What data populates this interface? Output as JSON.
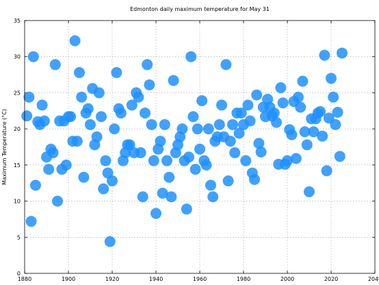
{
  "chart_data": {
    "type": "scatter",
    "title": "Edmonton daily maximum temperature for May 31",
    "xlabel": "",
    "ylabel": "Maximum Temperature (°C)",
    "xlim": [
      1880,
      2040
    ],
    "ylim": [
      0,
      35
    ],
    "xticks": [
      1880,
      1900,
      1920,
      1940,
      1960,
      1980,
      2000,
      2020,
      2040
    ],
    "yticks": [
      0,
      5,
      10,
      15,
      20,
      25,
      30,
      35
    ],
    "grid": true,
    "color": "#1e90ff",
    "points": [
      [
        1881,
        21.8
      ],
      [
        1882,
        24.4
      ],
      [
        1883,
        7.2
      ],
      [
        1884,
        30.0
      ],
      [
        1885,
        12.2
      ],
      [
        1886,
        21.0
      ],
      [
        1887,
        20.6
      ],
      [
        1888,
        23.3
      ],
      [
        1889,
        21.1
      ],
      [
        1890,
        16.1
      ],
      [
        1891,
        14.4
      ],
      [
        1892,
        17.2
      ],
      [
        1893,
        16.7
      ],
      [
        1894,
        28.9
      ],
      [
        1895,
        10.0
      ],
      [
        1896,
        21.1
      ],
      [
        1897,
        14.4
      ],
      [
        1898,
        21.1
      ],
      [
        1899,
        15.0
      ],
      [
        1900,
        21.7
      ],
      [
        1901,
        21.7
      ],
      [
        1902,
        18.3
      ],
      [
        1903,
        32.2
      ],
      [
        1904,
        18.3
      ],
      [
        1905,
        27.8
      ],
      [
        1906,
        24.4
      ],
      [
        1907,
        13.3
      ],
      [
        1908,
        22.2
      ],
      [
        1909,
        22.8
      ],
      [
        1910,
        20.6
      ],
      [
        1911,
        25.6
      ],
      [
        1912,
        17.8
      ],
      [
        1913,
        18.9
      ],
      [
        1914,
        25.0
      ],
      [
        1915,
        21.7
      ],
      [
        1916,
        11.7
      ],
      [
        1917,
        15.6
      ],
      [
        1918,
        13.9
      ],
      [
        1919,
        4.4
      ],
      [
        1920,
        12.8
      ],
      [
        1921,
        20.0
      ],
      [
        1922,
        27.8
      ],
      [
        1923,
        22.8
      ],
      [
        1924,
        22.2
      ],
      [
        1925,
        15.6
      ],
      [
        1926,
        16.7
      ],
      [
        1927,
        17.8
      ],
      [
        1928,
        17.8
      ],
      [
        1929,
        23.3
      ],
      [
        1930,
        16.7
      ],
      [
        1931,
        25.0
      ],
      [
        1932,
        24.4
      ],
      [
        1933,
        16.7
      ],
      [
        1934,
        10.6
      ],
      [
        1935,
        22.2
      ],
      [
        1936,
        28.9
      ],
      [
        1937,
        26.1
      ],
      [
        1938,
        20.6
      ],
      [
        1939,
        15.6
      ],
      [
        1940,
        8.3
      ],
      [
        1941,
        17.2
      ],
      [
        1942,
        18.3
      ],
      [
        1943,
        11.1
      ],
      [
        1944,
        20.6
      ],
      [
        1945,
        15.6
      ],
      [
        1946,
        13.3
      ],
      [
        1947,
        10.6
      ],
      [
        1948,
        26.7
      ],
      [
        1949,
        16.7
      ],
      [
        1950,
        17.8
      ],
      [
        1951,
        18.9
      ],
      [
        1952,
        20.0
      ],
      [
        1953,
        15.6
      ],
      [
        1954,
        8.9
      ],
      [
        1955,
        16.1
      ],
      [
        1956,
        30.0
      ],
      [
        1957,
        21.7
      ],
      [
        1958,
        14.4
      ],
      [
        1959,
        20.0
      ],
      [
        1960,
        17.2
      ],
      [
        1961,
        23.9
      ],
      [
        1962,
        15.6
      ],
      [
        1963,
        15.0
      ],
      [
        1964,
        20.0
      ],
      [
        1965,
        12.2
      ],
      [
        1966,
        10.6
      ],
      [
        1967,
        18.3
      ],
      [
        1968,
        18.9
      ],
      [
        1969,
        20.6
      ],
      [
        1970,
        23.3
      ],
      [
        1971,
        18.9
      ],
      [
        1972,
        28.9
      ],
      [
        1973,
        12.8
      ],
      [
        1974,
        18.3
      ],
      [
        1975,
        20.6
      ],
      [
        1976,
        16.7
      ],
      [
        1977,
        22.2
      ],
      [
        1978,
        19.4
      ],
      [
        1979,
        22.2
      ],
      [
        1980,
        20.6
      ],
      [
        1981,
        15.6
      ],
      [
        1982,
        23.3
      ],
      [
        1983,
        21.1
      ],
      [
        1984,
        13.9
      ],
      [
        1985,
        13.0
      ],
      [
        1986,
        24.7
      ],
      [
        1987,
        18.0
      ],
      [
        1988,
        16.8
      ],
      [
        1989,
        23.0
      ],
      [
        1990,
        21.7
      ],
      [
        1991,
        24.1
      ],
      [
        1992,
        23.0
      ],
      [
        1993,
        21.8
      ],
      [
        1994,
        22.2
      ],
      [
        1995,
        20.9
      ],
      [
        1996,
        15.1
      ],
      [
        1997,
        25.7
      ],
      [
        1998,
        23.6
      ],
      [
        1999,
        15.1
      ],
      [
        2000,
        15.6
      ],
      [
        2001,
        19.9
      ],
      [
        2002,
        19.2
      ],
      [
        2003,
        23.8
      ],
      [
        2004,
        15.9
      ],
      [
        2005,
        24.4
      ],
      [
        2006,
        23.0
      ],
      [
        2007,
        26.6
      ],
      [
        2008,
        19.6
      ],
      [
        2009,
        17.8
      ],
      [
        2010,
        11.3
      ],
      [
        2011,
        21.4
      ],
      [
        2012,
        19.6
      ],
      [
        2013,
        21.4
      ],
      [
        2014,
        22.2
      ],
      [
        2015,
        22.4
      ],
      [
        2016,
        19.0
      ],
      [
        2017,
        30.2
      ],
      [
        2018,
        14.2
      ],
      [
        2019,
        21.5
      ],
      [
        2020,
        27.0
      ],
      [
        2021,
        24.4
      ],
      [
        2022,
        20.6
      ],
      [
        2023,
        22.3
      ],
      [
        2024,
        16.2
      ],
      [
        2025,
        30.5
      ]
    ]
  }
}
